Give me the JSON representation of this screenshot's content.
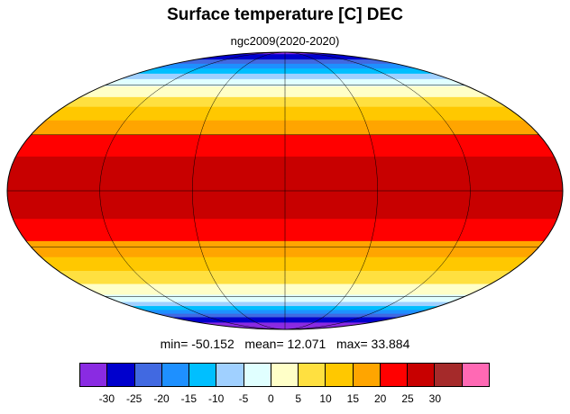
{
  "title": "Surface temperature [C] DEC",
  "subtitle": "ngc2009(2020-2020)",
  "stats": {
    "min_label": "min=",
    "min": "-50.152",
    "mean_label": "mean=",
    "mean": "12.071",
    "max_label": "max=",
    "max": "33.884"
  },
  "map": {
    "projection": "mollweide",
    "graticule_lon_step": 60,
    "graticule_lat_step": 30,
    "zonal_mean_profile": [
      {
        "lat": 90,
        "value": -33
      },
      {
        "lat": 80,
        "value": -25
      },
      {
        "lat": 70,
        "value": -12
      },
      {
        "lat": 62,
        "value": -3
      },
      {
        "lat": 55,
        "value": 3
      },
      {
        "lat": 47,
        "value": 9
      },
      {
        "lat": 40,
        "value": 14
      },
      {
        "lat": 32,
        "value": 19
      },
      {
        "lat": 25,
        "value": 23
      },
      {
        "lat": 15,
        "value": 26
      },
      {
        "lat": 5,
        "value": 27
      },
      {
        "lat": -5,
        "value": 27
      },
      {
        "lat": -15,
        "value": 25
      },
      {
        "lat": -25,
        "value": 21
      },
      {
        "lat": -35,
        "value": 16
      },
      {
        "lat": -42,
        "value": 11
      },
      {
        "lat": -50,
        "value": 6
      },
      {
        "lat": -58,
        "value": 1
      },
      {
        "lat": -63,
        "value": -3
      },
      {
        "lat": -68,
        "value": -12
      },
      {
        "lat": -78,
        "value": -28
      },
      {
        "lat": -90,
        "value": -36
      }
    ]
  },
  "colorbar": {
    "colors": [
      "#8a2be2",
      "#0000cd",
      "#4169e1",
      "#1e90ff",
      "#00bfff",
      "#a0d0ff",
      "#e0ffff",
      "#ffffc8",
      "#ffe040",
      "#ffc800",
      "#ffa500",
      "#ff0000",
      "#c80000",
      "#a52a2a",
      "#ff69b4"
    ],
    "levels": [
      -30,
      -25,
      -20,
      -15,
      -10,
      -5,
      0,
      5,
      10,
      15,
      20,
      25,
      30
    ],
    "tick_labels": [
      "-30",
      "-25",
      "-20",
      "-15",
      "-10",
      "-5",
      "0",
      "5",
      "10",
      "15",
      "20",
      "25",
      "30"
    ]
  }
}
